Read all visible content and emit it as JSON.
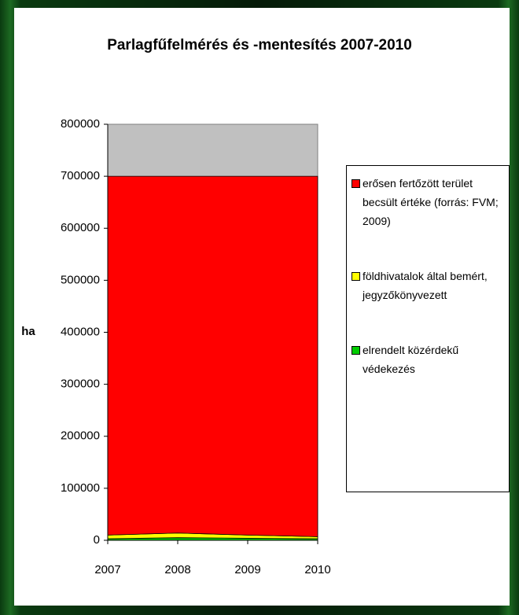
{
  "chart_data": {
    "type": "stacked_area",
    "title": "Parlagfűfelmérés és -mentesítés 2007-2010",
    "y_label": "ha",
    "x": [
      2007,
      2008,
      2009,
      2010
    ],
    "xlim": [
      2007,
      2010
    ],
    "xticks": [
      2007,
      2008,
      2009,
      2010
    ],
    "ylim": [
      0,
      800000
    ],
    "yticks": [
      0,
      100000,
      200000,
      300000,
      400000,
      500000,
      600000,
      700000,
      800000
    ],
    "plot_background": "#c0c0c0",
    "legend": "right",
    "series": [
      {
        "name": "erősen fertőzött terület becsült értéke (forrás: FVM; 2009)",
        "color": "#ff0000",
        "values": [
          690000,
          686000,
          690000,
          693000
        ]
      },
      {
        "name": "földhivatalok által bemért, jegyzőkönyvezett",
        "color": "#ffff00",
        "values": [
          7000,
          9000,
          6000,
          4000
        ]
      },
      {
        "name": "elrendelt közérdekű védekezés",
        "color": "#00cc00",
        "values": [
          3000,
          5000,
          4000,
          3000
        ]
      }
    ]
  }
}
